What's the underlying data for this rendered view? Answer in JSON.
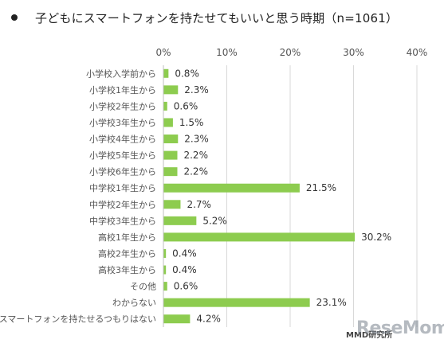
{
  "chart_data": {
    "type": "bar",
    "orientation": "horizontal",
    "title": "子どもにスマートフォンを持たせてもいいと思う時期（n=1061）",
    "categories": [
      "小学校入学前から",
      "小学校1年生から",
      "小学校2年生から",
      "小学校3年生から",
      "小学校4年生から",
      "小学校5年生から",
      "小学校6年生から",
      "中学校1年生から",
      "中学校2年生から",
      "中学校3年生から",
      "高校1年生から",
      "高校2年生から",
      "高校3年生から",
      "その他",
      "わからない",
      "スマートフォンを持たせるつもりはない"
    ],
    "values": [
      0.8,
      2.3,
      0.6,
      1.5,
      2.3,
      2.2,
      2.2,
      21.5,
      2.7,
      5.2,
      30.2,
      0.4,
      0.4,
      0.6,
      23.1,
      4.2
    ],
    "value_labels": [
      "0.8%",
      "2.3%",
      "0.6%",
      "1.5%",
      "2.3%",
      "2.2%",
      "2.2%",
      "21.5%",
      "2.7%",
      "5.2%",
      "30.2%",
      "0.4%",
      "0.4%",
      "0.6%",
      "23.1%",
      "4.2%"
    ],
    "xlim": [
      0,
      40
    ],
    "xticks": [
      0,
      10,
      20,
      30,
      40
    ],
    "xtick_labels": [
      "0%",
      "10%",
      "20%",
      "30%",
      "40%"
    ],
    "xtick_position": "top",
    "grid": true,
    "bar_color": "#8dcc4f",
    "grid_color": "#d9d9d9"
  },
  "source": "MMD研究所",
  "watermark": "ReseMom"
}
